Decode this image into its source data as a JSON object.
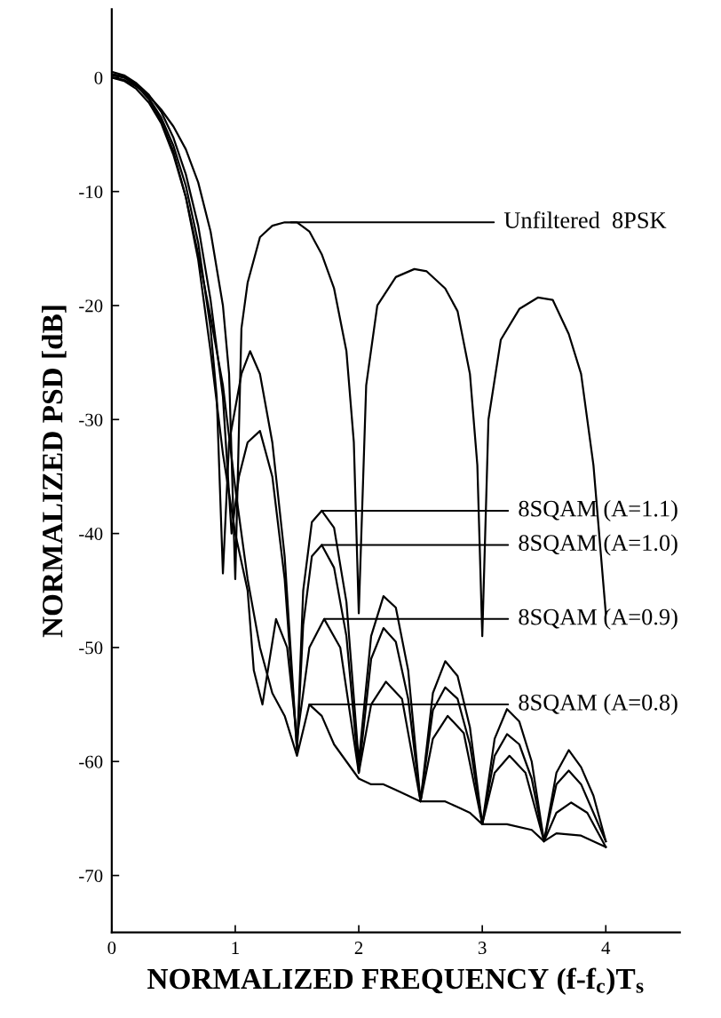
{
  "chart_data": {
    "type": "line",
    "xlabel": "NORMALIZED FREQUENCY (f-f$_{c}$)T$_{s}$",
    "ylabel": "NORMALIZED PSD [dB]",
    "xlim": [
      0,
      4.6
    ],
    "ylim": [
      -75,
      6
    ],
    "xticks": [
      0,
      1,
      2,
      3,
      4
    ],
    "yticks": [
      {
        "value": 0,
        "label": "0"
      },
      {
        "value": -10,
        "label": "-10"
      },
      {
        "value": -20,
        "label": "-20"
      },
      {
        "value": -30,
        "label": "-30"
      },
      {
        "value": -40,
        "label": "-40"
      },
      {
        "value": -50,
        "label": "-50"
      },
      {
        "value": -60,
        "label": "-60"
      },
      {
        "value": -70,
        "label": "-70"
      }
    ],
    "marker": "none",
    "line_style": "solid",
    "series": [
      {
        "color": "#000000",
        "x": [
          0,
          0.1,
          0.2,
          0.3,
          0.4,
          0.5,
          0.6,
          0.7,
          0.8,
          0.9,
          0.95,
          1.0,
          1.05,
          1.1,
          1.2,
          1.3,
          1.4,
          1.5,
          1.6,
          1.7,
          1.8,
          1.9,
          1.96,
          2.0,
          2.06,
          2.15,
          2.3,
          2.45,
          2.55,
          2.7,
          2.8,
          2.9,
          2.96,
          3.0,
          3.05,
          3.15,
          3.3,
          3.45,
          3.57,
          3.7,
          3.8,
          3.9,
          4.0
        ],
        "values": [
          0,
          -0.2,
          -0.8,
          -1.6,
          -2.8,
          -4.3,
          -6.3,
          -9.2,
          -13.5,
          -20,
          -26,
          -44,
          -22,
          -18,
          -14,
          -13,
          -12.7,
          -12.7,
          -13.5,
          -15.5,
          -18.5,
          -24,
          -32,
          -47,
          -27,
          -20,
          -17.5,
          -16.8,
          -17,
          -18.5,
          -20.5,
          -26,
          -34,
          -49,
          -30,
          -23,
          -20.3,
          -19.3,
          -19.5,
          -22.5,
          -26,
          -34,
          -47
        ]
      },
      {
        "color": "#000000",
        "x": [
          0,
          0.1,
          0.2,
          0.3,
          0.4,
          0.5,
          0.6,
          0.7,
          0.8,
          0.85,
          0.9,
          0.95,
          1.05,
          1.12,
          1.2,
          1.3,
          1.4,
          1.5,
          1.55,
          1.62,
          1.7,
          1.8,
          1.9,
          2.0,
          2.1,
          2.2,
          2.3,
          2.4,
          2.5,
          2.6,
          2.7,
          2.8,
          2.9,
          3.0,
          3.1,
          3.2,
          3.3,
          3.4,
          3.5,
          3.6,
          3.7,
          3.8,
          3.9,
          4.0
        ],
        "values": [
          0.3,
          0.1,
          -0.6,
          -1.8,
          -3.5,
          -6,
          -9.5,
          -14.5,
          -22,
          -28,
          -43.5,
          -32,
          -26,
          -24,
          -26,
          -32,
          -42,
          -59,
          -45,
          -39,
          -38,
          -39.5,
          -46,
          -60,
          -49,
          -45.5,
          -46.5,
          -52,
          -63.5,
          -54,
          -51.2,
          -52.5,
          -57,
          -65.5,
          -58,
          -55.4,
          -56.5,
          -60,
          -67,
          -61,
          -59,
          -60.5,
          -63,
          -67
        ]
      },
      {
        "color": "#000000",
        "x": [
          0,
          0.1,
          0.2,
          0.3,
          0.4,
          0.5,
          0.6,
          0.7,
          0.8,
          0.9,
          0.97,
          1.03,
          1.1,
          1.2,
          1.3,
          1.4,
          1.5,
          1.55,
          1.62,
          1.7,
          1.8,
          1.9,
          2.0,
          2.1,
          2.2,
          2.3,
          2.4,
          2.5,
          2.6,
          2.7,
          2.8,
          2.9,
          3.0,
          3.1,
          3.2,
          3.3,
          3.4,
          3.5,
          3.6,
          3.7,
          3.8,
          3.9,
          4.0
        ],
        "values": [
          0.5,
          0.2,
          -0.5,
          -1.5,
          -3,
          -5.3,
          -8.5,
          -13,
          -19.5,
          -28,
          -40,
          -35,
          -32,
          -31,
          -35,
          -44,
          -59,
          -48,
          -42,
          -41,
          -43,
          -49,
          -61,
          -51,
          -48.3,
          -49.5,
          -54.5,
          -63.5,
          -55.5,
          -53.5,
          -54.5,
          -58.5,
          -65.5,
          -59.5,
          -57.6,
          -58.5,
          -61.5,
          -67,
          -62,
          -60.8,
          -62,
          -64.5,
          -67
        ]
      },
      {
        "color": "#000000",
        "x": [
          0,
          0.1,
          0.2,
          0.3,
          0.4,
          0.5,
          0.6,
          0.7,
          0.8,
          0.9,
          1.0,
          1.1,
          1.15,
          1.22,
          1.33,
          1.42,
          1.5,
          1.6,
          1.72,
          1.85,
          2.0,
          2.1,
          2.22,
          2.35,
          2.5,
          2.6,
          2.72,
          2.85,
          3.0,
          3.1,
          3.22,
          3.35,
          3.5,
          3.6,
          3.72,
          3.85,
          4.0
        ],
        "values": [
          0.2,
          0,
          -0.7,
          -1.9,
          -3.8,
          -6.5,
          -10.5,
          -16,
          -24,
          -33,
          -40,
          -45,
          -52,
          -55,
          -47.5,
          -50,
          -58,
          -50,
          -47.5,
          -50,
          -61,
          -55,
          -53,
          -54.5,
          -63.5,
          -58,
          -56,
          -57.5,
          -65.5,
          -61,
          -59.5,
          -61,
          -67,
          -64.5,
          -63.6,
          -64.5,
          -67.5
        ]
      },
      {
        "color": "#000000",
        "x": [
          0,
          0.1,
          0.2,
          0.3,
          0.4,
          0.5,
          0.6,
          0.7,
          0.8,
          0.9,
          1.0,
          1.1,
          1.2,
          1.3,
          1.4,
          1.5,
          1.6,
          1.7,
          1.8,
          1.9,
          2.0,
          2.1,
          2.2,
          2.3,
          2.4,
          2.5,
          2.6,
          2.7,
          2.8,
          2.9,
          3.0,
          3.2,
          3.4,
          3.5,
          3.6,
          3.8,
          4.0
        ],
        "values": [
          0,
          -0.3,
          -1,
          -2.2,
          -4,
          -6.8,
          -10.5,
          -15.5,
          -21,
          -27,
          -36,
          -44,
          -50,
          -54,
          -56,
          -59.5,
          -55,
          -56,
          -58.5,
          -60,
          -61.5,
          -62,
          -62,
          -62.5,
          -63,
          -63.5,
          -63.5,
          -63.5,
          -64,
          -64.5,
          -65.5,
          -65.5,
          -66,
          -67,
          -66.3,
          -66.5,
          -67.5
        ]
      }
    ],
    "annotations": [
      {
        "text": "Unfiltered  8PSK",
        "x": 1.45,
        "y": -12.7
      },
      {
        "text": "8SQAM (A=1.1)",
        "x": 1.7,
        "y": -38
      },
      {
        "text": "8SQAM (A=1.0)",
        "x": 1.7,
        "y": -41
      },
      {
        "text": "8SQAM (A=0.9)",
        "x": 1.72,
        "y": -47.5
      },
      {
        "text": "8SQAM (A=0.8)",
        "x": 1.6,
        "y": -55
      }
    ]
  }
}
